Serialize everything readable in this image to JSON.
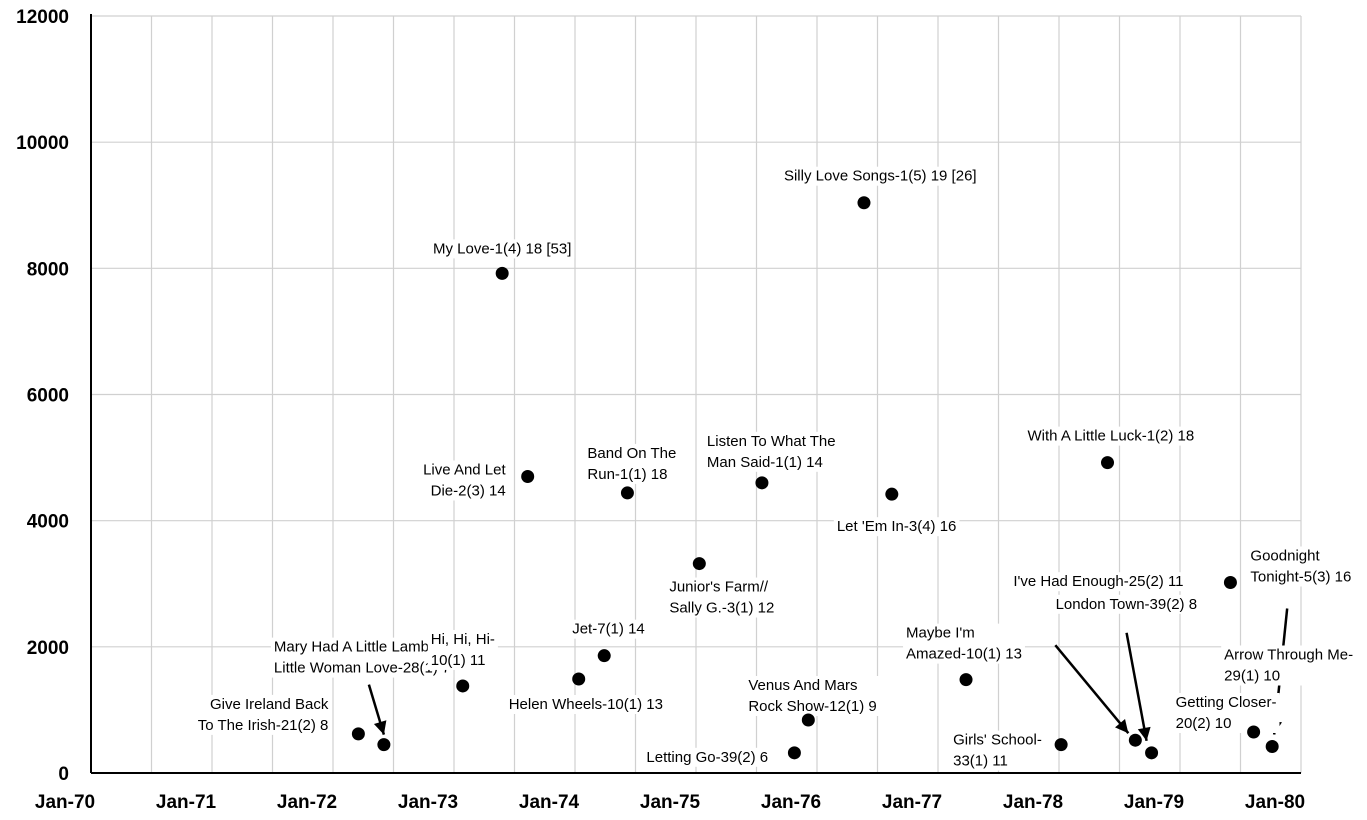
{
  "chart_data": {
    "type": "scatter",
    "title": "",
    "xlabel": "",
    "ylabel": "",
    "x_axis": {
      "type": "date",
      "min": "1970-01-01",
      "max": "1980-01-01"
    },
    "ylim": [
      0,
      12000
    ],
    "x_ticks": [
      "Jan-70",
      "Jan-71",
      "Jan-72",
      "Jan-73",
      "Jan-74",
      "Jan-75",
      "Jan-76",
      "Jan-77",
      "Jan-78",
      "Jan-79",
      "Jan-80"
    ],
    "y_ticks": [
      "0",
      "2000",
      "4000",
      "6000",
      "8000",
      "10000",
      "12000"
    ],
    "grid": true,
    "marker_color": "#000000",
    "points": [
      {
        "x": "1972-03-18",
        "y": 620,
        "label": [
          "Give Ireland Back",
          "To The Irish-21(2) 8"
        ]
      },
      {
        "x": "1972-06-03",
        "y": 450,
        "label": [
          "Mary Had A Little Lamb//",
          "Little Woman Love-28(1) 7"
        ]
      },
      {
        "x": "1973-01-27",
        "y": 1380,
        "label": [
          "Hi, Hi, Hi-",
          "10(1) 11"
        ]
      },
      {
        "x": "1973-05-26",
        "y": 7920,
        "label": [
          "My Love-1(4) 18 [53]"
        ]
      },
      {
        "x": "1973-08-11",
        "y": 4700,
        "label": [
          "Live And Let",
          "Die-2(3) 14"
        ]
      },
      {
        "x": "1974-01-12",
        "y": 1490,
        "label": [
          "Helen Wheels-10(1) 13"
        ]
      },
      {
        "x": "1974-03-30",
        "y": 1860,
        "label": [
          "Jet-7(1) 14"
        ]
      },
      {
        "x": "1974-06-08",
        "y": 4440,
        "label": [
          "Band On The",
          "Run-1(1) 18"
        ]
      },
      {
        "x": "1975-01-11",
        "y": 3320,
        "label": [
          "Junior's Farm//",
          "Sally G.-3(1) 12"
        ]
      },
      {
        "x": "1975-07-19",
        "y": 4600,
        "label": [
          "Listen To What The",
          "Man Said-1(1) 14"
        ]
      },
      {
        "x": "1975-10-25",
        "y": 320,
        "label": [
          "Letting Go-39(2) 6"
        ]
      },
      {
        "x": "1975-12-06",
        "y": 840,
        "label": [
          "Venus And Mars",
          "Rock Show-12(1) 9"
        ]
      },
      {
        "x": "1976-05-22",
        "y": 9040,
        "label": [
          "Silly Love Songs-1(5) 19 [26]"
        ]
      },
      {
        "x": "1976-08-14",
        "y": 4420,
        "label": [
          "Let 'Em In-3(4) 16"
        ]
      },
      {
        "x": "1977-03-26",
        "y": 1480,
        "label": [
          "Maybe I'm",
          "Amazed-10(1) 13"
        ]
      },
      {
        "x": "1978-01-07",
        "y": 450,
        "label": [
          "Girls' School-",
          "33(1) 11"
        ]
      },
      {
        "x": "1978-05-27",
        "y": 4920,
        "label": [
          "With A Little Luck-1(2) 18"
        ]
      },
      {
        "x": "1978-08-19",
        "y": 520,
        "label": [
          "I've Had Enough-25(2) 11"
        ]
      },
      {
        "x": "1978-10-07",
        "y": 320,
        "label": [
          "London Town-39(2) 8"
        ]
      },
      {
        "x": "1979-06-02",
        "y": 3020,
        "label": [
          "Goodnight",
          "Tonight-5(3) 16"
        ]
      },
      {
        "x": "1979-08-11",
        "y": 650,
        "label": [
          "Getting Closer-",
          "20(2) 10"
        ]
      },
      {
        "x": "1979-10-06",
        "y": 420,
        "label": [
          "Arrow Through Me-",
          "29(1) 10"
        ]
      }
    ]
  }
}
